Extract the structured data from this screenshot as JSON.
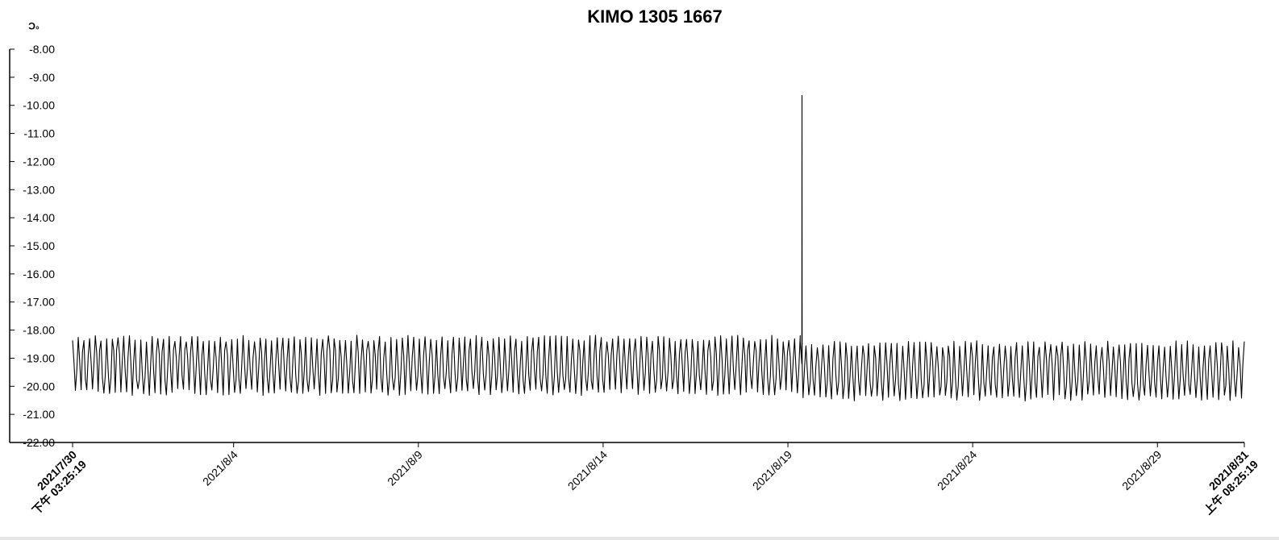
{
  "chart_data": {
    "type": "line",
    "title": "KIMO 1305 1667",
    "unit": "°C",
    "ylabel": "",
    "xlabel": "",
    "ylim": [
      -22.0,
      -8.0
    ],
    "y_tick_labels": [
      "-8.00",
      "-9.00",
      "-10.00",
      "-11.00",
      "-12.00",
      "-13.00",
      "-14.00",
      "-15.00",
      "-16.00",
      "-17.00",
      "-18.00",
      "-19.00",
      "-20.00",
      "-21.00",
      "-22.00"
    ],
    "x_range": [
      "2021-07-30 15:25:19",
      "2021-08-31 08:25:19"
    ],
    "x_ticks": [
      {
        "date": "2021-07-30 15:25:19",
        "line1": "2021/7/30",
        "line2": "下午 03:25:19",
        "bold": true
      },
      {
        "date": "2021-08-04 00:00:00",
        "line1": "2021/8/4",
        "bold": false
      },
      {
        "date": "2021-08-09 00:00:00",
        "line1": "2021/8/9",
        "bold": false
      },
      {
        "date": "2021-08-14 00:00:00",
        "line1": "2021/8/14",
        "bold": false
      },
      {
        "date": "2021-08-19 00:00:00",
        "line1": "2021/8/19",
        "bold": false
      },
      {
        "date": "2021-08-24 00:00:00",
        "line1": "2021/8/24",
        "bold": false
      },
      {
        "date": "2021-08-29 00:00:00",
        "line1": "2021/8/29",
        "bold": false
      },
      {
        "date": "2021-08-31 08:25:19",
        "line1": "2021/8/31",
        "line2": "上午 08:25:19",
        "bold": true
      }
    ],
    "grid": false,
    "legend": "none",
    "series": [
      {
        "color": "#000000",
        "segments": [
          {
            "from": "2021-07-30 15:25:19",
            "to": "2021-08-19 08:00:00",
            "low": -20.2,
            "high": -18.3,
            "cycles_per_day": 6.5
          },
          {
            "from": "2021-08-19 08:00:00",
            "to": "2021-08-31 08:25:19",
            "low": -20.4,
            "high": -18.5,
            "cycles_per_day": 6.5
          }
        ],
        "spikes": [
          {
            "x": "2021-08-19 09:10:00",
            "y": -9.65
          }
        ]
      }
    ]
  }
}
